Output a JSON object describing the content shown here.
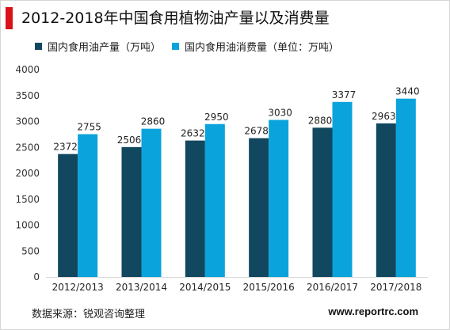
{
  "title": "2012-2018年中国食用植物油产量以及消费量",
  "source": "数据来源：锐观咨询整理",
  "website": "www.reportrc.com",
  "colors": {
    "accent": "#d9121a",
    "production": "#11475f",
    "consumption": "#0ba3dc"
  },
  "chart_data": {
    "type": "bar",
    "title": "2012-2018年中国食用植物油产量以及消费量",
    "xlabel": "",
    "ylabel": "",
    "categories": [
      "2012/2013",
      "2013/2014",
      "2014/2015",
      "2015/2016",
      "2016/2017",
      "2017/2018"
    ],
    "series": [
      {
        "name": "国内食用油产量（万吨）",
        "values": [
          2372,
          2506,
          2632,
          2678,
          2880,
          2963
        ],
        "color": "#11475f"
      },
      {
        "name": "国内食用油消费量（单位：万吨）",
        "values": [
          2755,
          2860,
          2950,
          3030,
          3377,
          3440
        ],
        "color": "#0ba3dc"
      }
    ],
    "yticks": [
      0,
      500,
      1000,
      1500,
      2000,
      2500,
      3000,
      3500,
      4000
    ],
    "ylim": [
      0,
      4000
    ],
    "grid": false,
    "legend_position": "top-left",
    "data_labels": true
  }
}
